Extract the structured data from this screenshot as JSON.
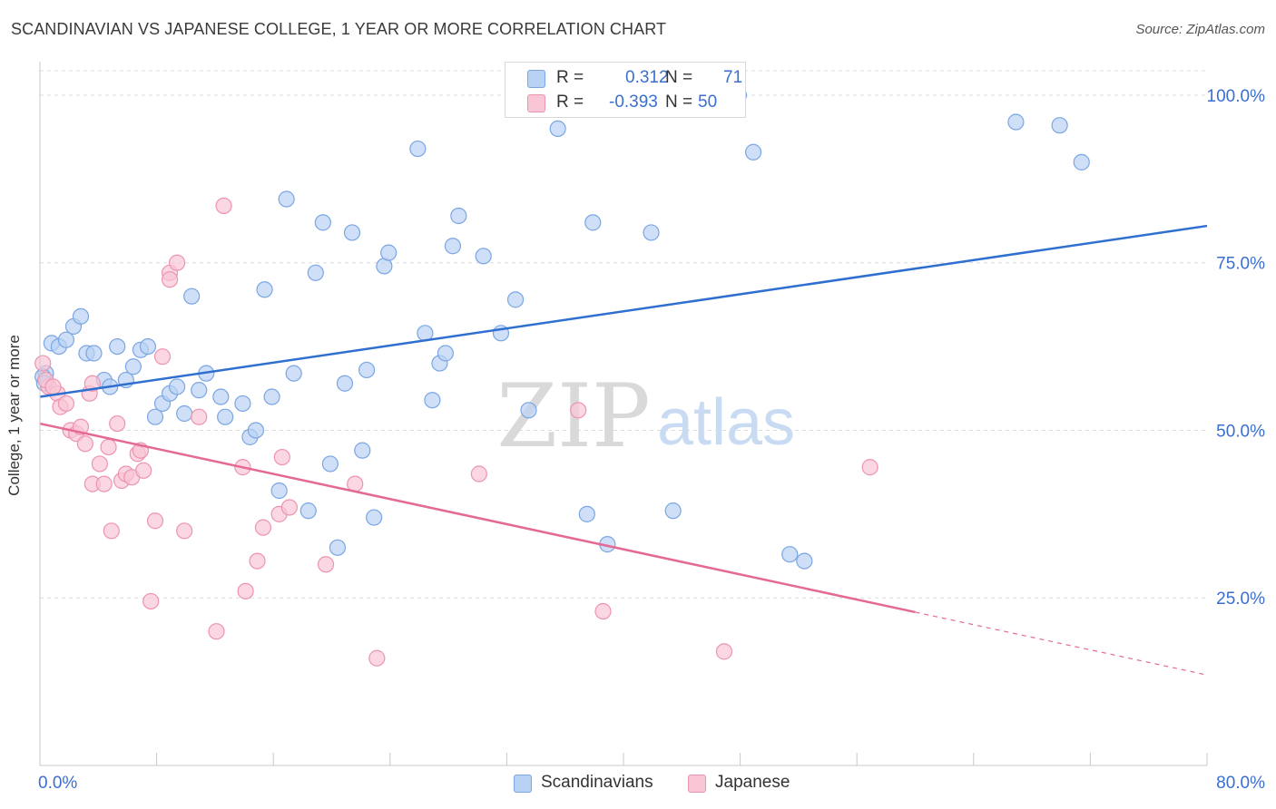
{
  "chart_data": {
    "type": "scatter",
    "title": "SCANDINAVIAN VS JAPANESE COLLEGE, 1 YEAR OR MORE CORRELATION CHART",
    "source": "Source: ZipAtlas.com",
    "xlabel": "",
    "ylabel": "College, 1 year or more",
    "xlim": [
      0,
      80
    ],
    "ylim": [
      0,
      105
    ],
    "x_tick_labels": [
      "0.0%",
      "80.0%"
    ],
    "y_ticks": [
      25,
      50,
      75,
      100
    ],
    "y_tick_labels": [
      "25.0%",
      "50.0%",
      "75.0%",
      "100.0%"
    ],
    "watermark": {
      "zip": "ZIP",
      "atlas": "atlas"
    },
    "colors": {
      "blue_fill": "#b9d1f3",
      "blue_stroke": "#7aa6e3",
      "blue_line": "#2f6fd0",
      "pink_fill": "#f8c6d5",
      "pink_stroke": "#ee93b0",
      "pink_line": "#e46a93",
      "value_text": "#3a6fcf"
    },
    "legend": [
      {
        "r_label": "R =",
        "r_value": "0.312",
        "n_label": "N =",
        "n_value": "71"
      },
      {
        "r_label": "R =",
        "r_value": "-0.393",
        "n_label": "N =",
        "n_value": "50"
      }
    ],
    "series": [
      {
        "name": "Scandinavians",
        "trend": {
          "x": [
            0,
            80
          ],
          "y": [
            55.0,
            80.5
          ],
          "dashed_from": null
        },
        "points": [
          [
            0.4,
            58.5
          ],
          [
            0.8,
            63.0
          ],
          [
            1.3,
            62.5
          ],
          [
            1.8,
            63.5
          ],
          [
            2.3,
            65.5
          ],
          [
            2.8,
            67.0
          ],
          [
            3.2,
            61.5
          ],
          [
            3.7,
            61.5
          ],
          [
            4.4,
            57.5
          ],
          [
            4.8,
            56.5
          ],
          [
            5.3,
            62.5
          ],
          [
            5.9,
            57.5
          ],
          [
            6.4,
            59.5
          ],
          [
            6.9,
            62.0
          ],
          [
            7.4,
            62.5
          ],
          [
            7.9,
            52.0
          ],
          [
            8.4,
            54.0
          ],
          [
            8.9,
            55.5
          ],
          [
            9.4,
            56.5
          ],
          [
            9.9,
            52.5
          ],
          [
            10.4,
            70.0
          ],
          [
            10.9,
            56.0
          ],
          [
            11.4,
            58.5
          ],
          [
            12.4,
            55.0
          ],
          [
            12.7,
            52.0
          ],
          [
            13.9,
            54.0
          ],
          [
            14.4,
            49.0
          ],
          [
            14.8,
            50.0
          ],
          [
            15.4,
            71.0
          ],
          [
            15.9,
            55.0
          ],
          [
            16.4,
            41.0
          ],
          [
            16.9,
            84.5
          ],
          [
            17.4,
            58.5
          ],
          [
            18.4,
            38.0
          ],
          [
            18.9,
            73.5
          ],
          [
            19.4,
            81.0
          ],
          [
            19.9,
            45.0
          ],
          [
            20.4,
            32.5
          ],
          [
            20.9,
            57.0
          ],
          [
            21.4,
            79.5
          ],
          [
            22.1,
            47.0
          ],
          [
            22.4,
            59.0
          ],
          [
            22.9,
            37.0
          ],
          [
            23.6,
            74.5
          ],
          [
            23.9,
            76.5
          ],
          [
            25.9,
            92.0
          ],
          [
            26.4,
            64.5
          ],
          [
            26.9,
            54.5
          ],
          [
            27.4,
            60.0
          ],
          [
            27.8,
            61.5
          ],
          [
            28.3,
            77.5
          ],
          [
            28.7,
            82.0
          ],
          [
            30.4,
            76.0
          ],
          [
            31.6,
            64.5
          ],
          [
            32.6,
            69.5
          ],
          [
            33.5,
            53.0
          ],
          [
            35.5,
            95.0
          ],
          [
            37.5,
            37.5
          ],
          [
            37.9,
            81.0
          ],
          [
            38.9,
            33.0
          ],
          [
            41.9,
            79.5
          ],
          [
            43.4,
            38.0
          ],
          [
            47.9,
            100.0
          ],
          [
            48.9,
            91.5
          ],
          [
            51.4,
            31.5
          ],
          [
            52.4,
            30.5
          ],
          [
            66.9,
            96.0
          ],
          [
            69.9,
            95.5
          ],
          [
            71.4,
            90.0
          ],
          [
            0.2,
            58.0
          ],
          [
            0.3,
            57.0
          ]
        ]
      },
      {
        "name": "Japanese",
        "trend": {
          "x": [
            0,
            80
          ],
          "y": [
            51.0,
            13.5
          ],
          "dashed_from": 60
        },
        "points": [
          [
            0.2,
            60.0
          ],
          [
            0.6,
            56.5
          ],
          [
            1.2,
            55.5
          ],
          [
            1.4,
            53.5
          ],
          [
            1.8,
            54.0
          ],
          [
            2.1,
            50.0
          ],
          [
            2.5,
            49.5
          ],
          [
            2.8,
            50.5
          ],
          [
            3.1,
            48.0
          ],
          [
            3.4,
            55.5
          ],
          [
            3.6,
            42.0
          ],
          [
            4.1,
            45.0
          ],
          [
            4.4,
            42.0
          ],
          [
            4.7,
            47.5
          ],
          [
            4.9,
            35.0
          ],
          [
            5.3,
            51.0
          ],
          [
            5.6,
            42.5
          ],
          [
            5.9,
            43.5
          ],
          [
            6.3,
            43.0
          ],
          [
            6.7,
            46.5
          ],
          [
            6.9,
            47.0
          ],
          [
            7.1,
            44.0
          ],
          [
            7.6,
            24.5
          ],
          [
            7.9,
            36.5
          ],
          [
            8.4,
            61.0
          ],
          [
            8.9,
            73.5
          ],
          [
            8.9,
            72.5
          ],
          [
            9.4,
            75.0
          ],
          [
            9.9,
            35.0
          ],
          [
            10.9,
            52.0
          ],
          [
            12.1,
            20.0
          ],
          [
            12.6,
            83.5
          ],
          [
            13.9,
            44.5
          ],
          [
            14.1,
            26.0
          ],
          [
            14.9,
            30.5
          ],
          [
            15.3,
            35.5
          ],
          [
            16.4,
            37.5
          ],
          [
            16.6,
            46.0
          ],
          [
            17.1,
            38.5
          ],
          [
            19.6,
            30.0
          ],
          [
            21.6,
            42.0
          ],
          [
            23.1,
            16.0
          ],
          [
            30.1,
            43.5
          ],
          [
            36.9,
            53.0
          ],
          [
            38.6,
            23.0
          ],
          [
            46.9,
            17.0
          ],
          [
            56.9,
            44.5
          ],
          [
            3.6,
            57.0
          ],
          [
            0.4,
            57.5
          ],
          [
            0.9,
            56.5
          ]
        ]
      }
    ]
  }
}
